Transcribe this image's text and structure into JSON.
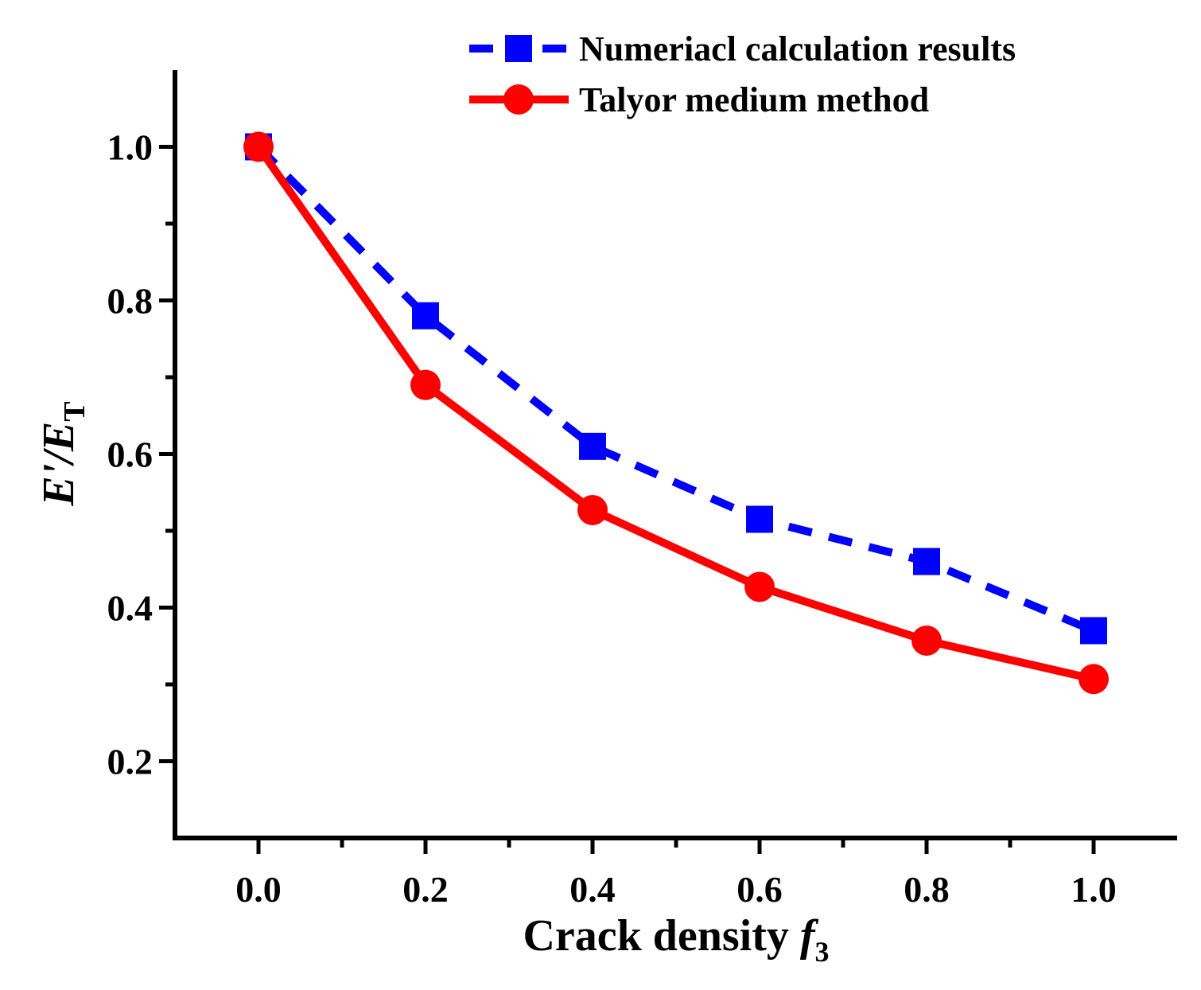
{
  "chart_data": {
    "type": "line",
    "x_axis": {
      "label_main": "Crack density ",
      "label_var": "f",
      "label_sub": "3",
      "min": -0.1,
      "max": 1.1,
      "ticks": [
        0.0,
        0.2,
        0.4,
        0.6,
        0.8,
        1.0
      ],
      "tick_labels": [
        "0.0",
        "0.2",
        "0.4",
        "0.6",
        "0.8",
        "1.0"
      ],
      "minor_ticks": [
        0.1,
        0.3,
        0.5,
        0.7,
        0.9
      ]
    },
    "y_axis": {
      "label_main": "E'/E",
      "label_sub": "T",
      "min": 0.1,
      "max": 1.1,
      "ticks": [
        0.2,
        0.4,
        0.6,
        0.8,
        1.0
      ],
      "tick_labels": [
        "0.2",
        "0.4",
        "0.6",
        "0.8",
        "1.0"
      ],
      "minor_ticks": [
        0.3,
        0.5,
        0.7,
        0.9
      ]
    },
    "series": [
      {
        "name": "Numeriacl calculation results",
        "color": "#0000ff",
        "line_style": "dashed",
        "marker": "square",
        "x": [
          0.0,
          0.2,
          0.4,
          0.6,
          0.8,
          1.0
        ],
        "y": [
          1.0,
          0.78,
          0.61,
          0.515,
          0.46,
          0.37
        ]
      },
      {
        "name": "Talyor medium method",
        "color": "#ff0000",
        "line_style": "solid",
        "marker": "circle",
        "x": [
          0.0,
          0.2,
          0.4,
          0.6,
          0.8,
          1.0
        ],
        "y": [
          1.0,
          0.69,
          0.527,
          0.427,
          0.357,
          0.307
        ]
      }
    ],
    "legend_position": "top-right",
    "grid": false
  }
}
